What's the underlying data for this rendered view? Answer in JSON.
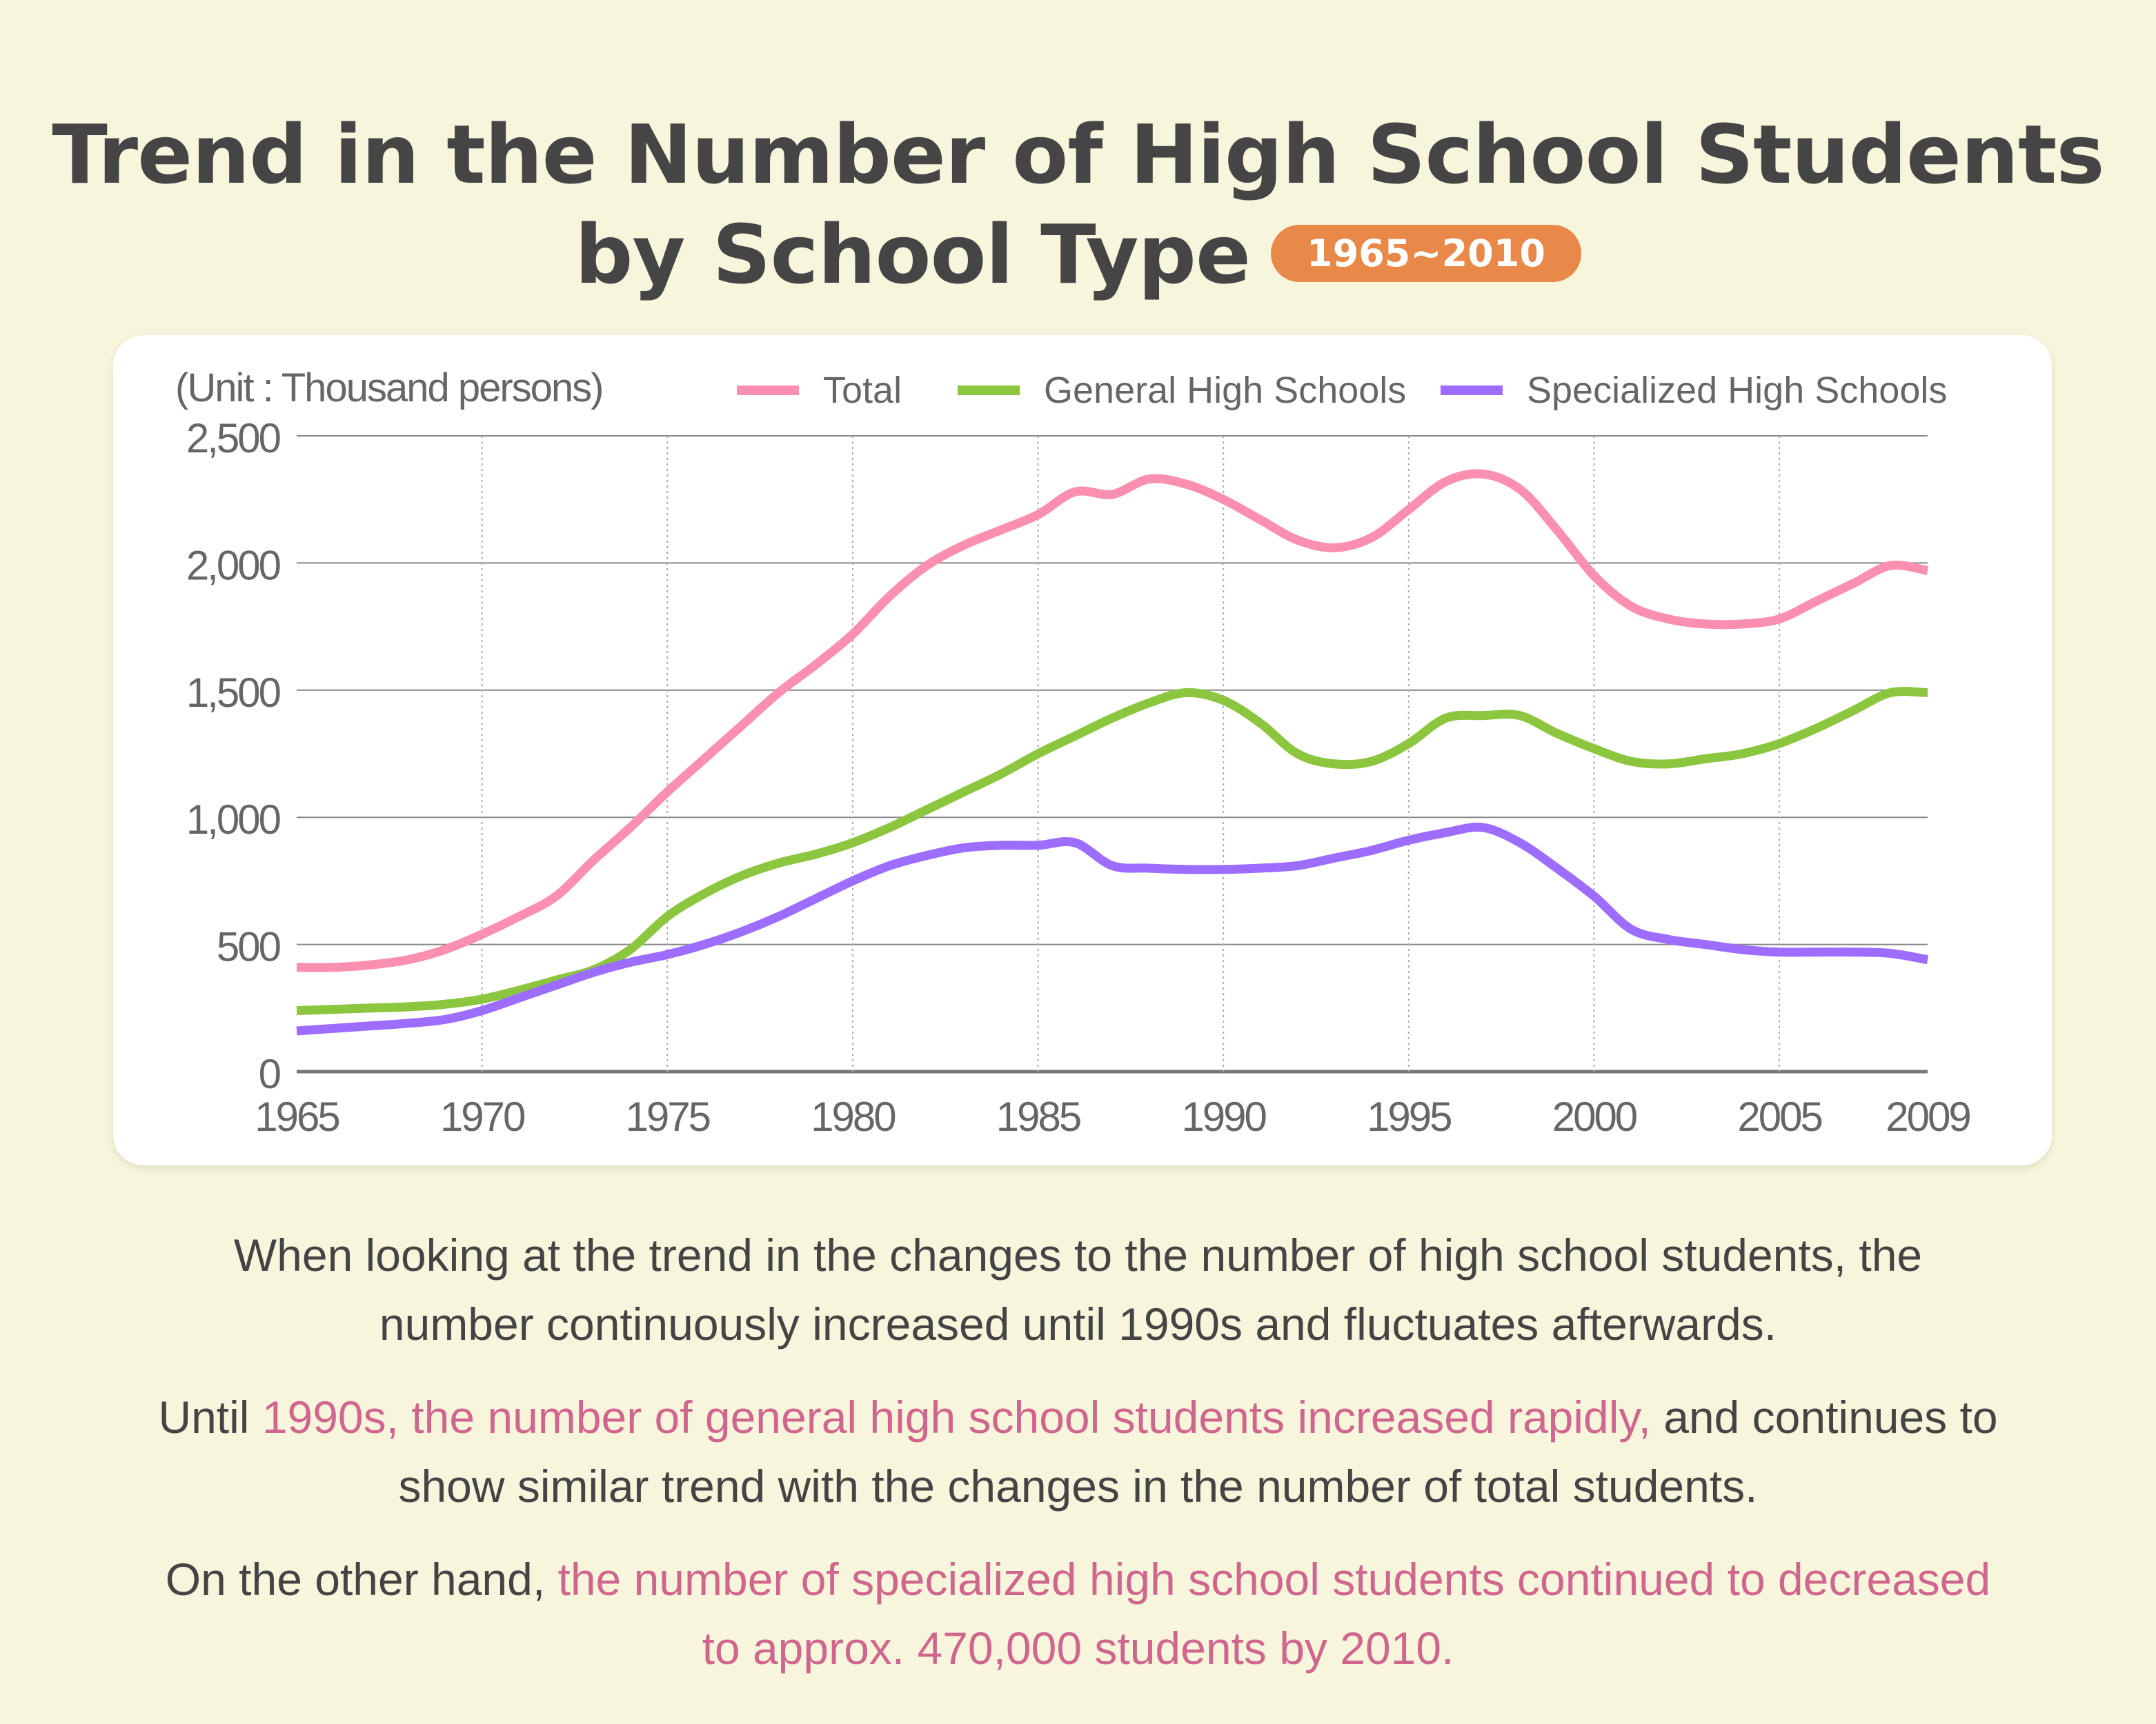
{
  "title": {
    "line1": "Trend in the Number of High School Students",
    "line2": "by School Type",
    "badge": "1965~2010"
  },
  "colors": {
    "total": "#fb8fb0",
    "general": "#8cc63f",
    "specialized": "#9c6dff",
    "highlight": "#d0668e",
    "badge": "#e8894a"
  },
  "chart_data": {
    "type": "line",
    "unit_label": "(Unit : Thousand persons)",
    "x": [
      1965,
      1966,
      1967,
      1968,
      1969,
      1970,
      1971,
      1972,
      1973,
      1974,
      1975,
      1976,
      1977,
      1978,
      1979,
      1980,
      1981,
      1982,
      1983,
      1984,
      1985,
      1986,
      1987,
      1988,
      1989,
      1990,
      1991,
      1992,
      1993,
      1994,
      1995,
      1996,
      1997,
      1998,
      1999,
      2000,
      2001,
      2002,
      2003,
      2004,
      2005,
      2006,
      2007,
      2008,
      2009
    ],
    "x_ticks": [
      1965,
      1970,
      1975,
      1980,
      1985,
      1990,
      1995,
      2000,
      2005,
      2009
    ],
    "x_tick_labels": [
      "1965",
      "1970",
      "1975",
      "1980",
      "1985",
      "1990",
      "1995",
      "2000",
      "2005",
      "2009"
    ],
    "y_ticks": [
      0,
      500,
      1000,
      1500,
      2000,
      2500
    ],
    "y_tick_labels": [
      "0",
      "500",
      "1,000",
      "1,500",
      "2,000",
      "2,500"
    ],
    "ylim": [
      0,
      2500
    ],
    "xlim": [
      1965,
      2009
    ],
    "legend_position": "top",
    "series": [
      {
        "name": "Total",
        "color_key": "total",
        "values": [
          410,
          410,
          420,
          440,
          480,
          540,
          610,
          690,
          830,
          960,
          1100,
          1230,
          1360,
          1490,
          1600,
          1720,
          1870,
          1990,
          2070,
          2130,
          2190,
          2280,
          2270,
          2330,
          2310,
          2250,
          2170,
          2090,
          2060,
          2100,
          2210,
          2320,
          2350,
          2290,
          2130,
          1950,
          1830,
          1780,
          1760,
          1760,
          1780,
          1850,
          1920,
          1990,
          1970
        ]
      },
      {
        "name": "General High Schools",
        "color_key": "general",
        "values": [
          240,
          245,
          250,
          255,
          265,
          285,
          320,
          360,
          400,
          480,
          610,
          700,
          770,
          820,
          855,
          900,
          960,
          1030,
          1100,
          1170,
          1250,
          1320,
          1390,
          1450,
          1490,
          1460,
          1370,
          1250,
          1210,
          1220,
          1290,
          1390,
          1400,
          1400,
          1330,
          1270,
          1220,
          1210,
          1230,
          1250,
          1290,
          1350,
          1420,
          1490,
          1490
        ]
      },
      {
        "name": "Specialized High Schools",
        "color_key": "specialized",
        "values": [
          160,
          170,
          180,
          190,
          205,
          240,
          290,
          340,
          390,
          430,
          460,
          500,
          550,
          610,
          680,
          750,
          810,
          850,
          880,
          890,
          890,
          900,
          810,
          800,
          795,
          795,
          800,
          810,
          840,
          870,
          910,
          940,
          960,
          900,
          800,
          690,
          560,
          520,
          500,
          480,
          470,
          470,
          470,
          465,
          440
        ]
      }
    ]
  },
  "paragraphs": [
    {
      "parts": [
        {
          "text": "When looking at the trend in the changes to the number of high school students, the number continuously increased until 1990s and fluctuates afterwards.",
          "hl": false
        }
      ]
    },
    {
      "parts": [
        {
          "text": "Until ",
          "hl": false
        },
        {
          "text": "1990s, the number of general high school students increased rapidly,",
          "hl": true
        },
        {
          "text": " and continues to show similar trend with the changes in the number of total students.",
          "hl": false
        }
      ]
    },
    {
      "parts": [
        {
          "text": "On the other hand, ",
          "hl": false
        },
        {
          "text": "the number of specialized high school students continued to decreased to approx. 470,000 students by 2010.",
          "hl": true
        }
      ]
    }
  ]
}
